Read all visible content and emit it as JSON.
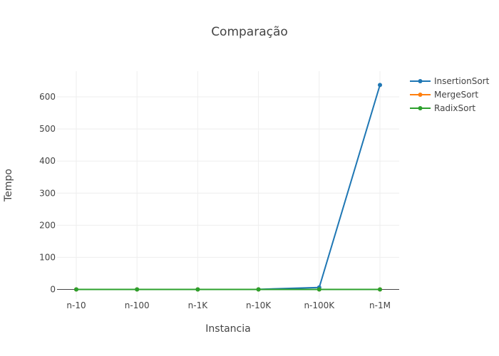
{
  "chart_data": {
    "type": "line",
    "title": "Comparação",
    "xlabel": "Instancia",
    "ylabel": "Tempo",
    "categories": [
      "n-10",
      "n-100",
      "n-1K",
      "n-10K",
      "n-100K",
      "n-1M"
    ],
    "ylim": [
      -30,
      680
    ],
    "yticks": [
      0,
      100,
      200,
      300,
      400,
      500,
      600
    ],
    "grid": true,
    "legend": "top-right",
    "series": [
      {
        "name": "InsertionSort",
        "color": "#1f77b4",
        "values": [
          0,
          0,
          0,
          0.3,
          6,
          637
        ]
      },
      {
        "name": "MergeSort",
        "color": "#ff7f0e",
        "values": [
          0,
          0,
          0,
          0,
          0,
          0
        ]
      },
      {
        "name": "RadixSort",
        "color": "#2ca02c",
        "values": [
          0,
          0,
          0,
          0,
          0,
          0
        ]
      }
    ]
  }
}
